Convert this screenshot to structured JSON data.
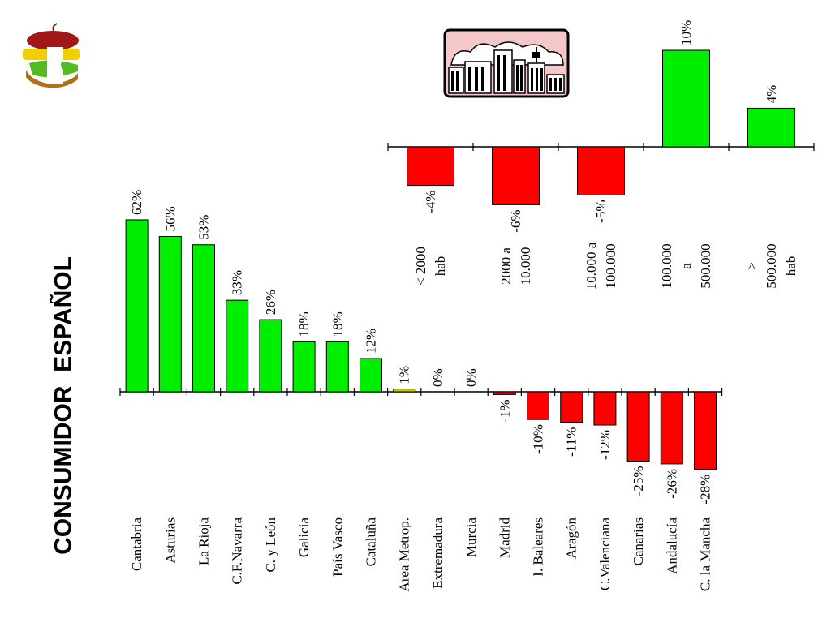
{
  "title": "CONSUMIDOR  ESPAÑOL",
  "icons": {
    "logo": "fruit-logo-icon",
    "city": "city-skyline-icon"
  },
  "colors": {
    "positive": "#00ee00",
    "negative": "#ff0000",
    "neutral": "#c8c800",
    "city_sky": "#f4c8c8",
    "outline": "#000000"
  },
  "chart_data": [
    {
      "type": "bar",
      "orientation": "rotated-90",
      "categories": [
        "Cantabria",
        "Asturias",
        "La Rioja",
        "C.F.Navarra",
        "C. y León",
        "Galicia",
        "País Vasco",
        "Cataluña",
        "Area Metrop.",
        "Extremadura",
        "Murcia",
        "Madrid",
        "I. Baleares",
        "Aragón",
        "C.Valenciana",
        "Canarias",
        "Andalucía",
        "C. la Mancha"
      ],
      "values": [
        62,
        56,
        53,
        33,
        26,
        18,
        18,
        12,
        1,
        0,
        0,
        -1,
        -10,
        -11,
        -12,
        -25,
        -26,
        -28
      ],
      "data_labels": [
        "62%",
        "56%",
        "53%",
        "33%",
        "26%",
        "18%",
        "18%",
        "12%",
        "1%",
        "0%",
        "0%",
        "-1%",
        "-10%",
        "-11%",
        "-12%",
        "-25%",
        "-26%",
        "-28%"
      ],
      "ylim": [
        -30,
        65
      ]
    },
    {
      "type": "bar",
      "orientation": "rotated-90",
      "categories": [
        [
          "< 2000",
          "hab"
        ],
        [
          "2000 a",
          "10.000"
        ],
        [
          "10.000 a",
          "100.000"
        ],
        [
          "100.000",
          "a",
          "500.000"
        ],
        [
          ">",
          "500.000",
          "hab"
        ]
      ],
      "values": [
        -4,
        -6,
        -5,
        10,
        4
      ],
      "data_labels": [
        "-4%",
        "-6%",
        "-5%",
        "10%",
        "4%"
      ],
      "ylim": [
        -7,
        11
      ]
    }
  ]
}
